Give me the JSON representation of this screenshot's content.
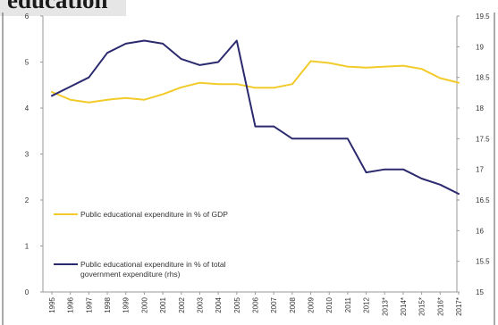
{
  "title": "education",
  "chart_data": {
    "type": "line",
    "x": [
      "1995",
      "1996",
      "1997",
      "1998",
      "1999",
      "2000",
      "2001",
      "2002",
      "2003",
      "2004",
      "2005",
      "2006",
      "2007",
      "2008",
      "2009",
      "2010",
      "2011",
      "2012",
      "2013*",
      "2014*",
      "2015*",
      "2016*",
      "2017*"
    ],
    "series": [
      {
        "name": "Public educational expenditure in % of GDP",
        "axis": "left",
        "color": "#f2cb2a",
        "values": [
          4.35,
          4.18,
          4.12,
          4.18,
          4.22,
          4.18,
          4.3,
          4.45,
          4.55,
          4.52,
          4.52,
          4.44,
          4.44,
          4.52,
          5.02,
          4.98,
          4.9,
          4.88,
          4.9,
          4.92,
          4.85,
          4.65,
          4.55
        ]
      },
      {
        "name": "Public educational expenditure in % of total government expenditure (rhs)",
        "legend_lines": [
          "Public educational expenditure in % of total",
          "government expenditure (rhs)"
        ],
        "axis": "right",
        "color": "#2b2a6e",
        "values": [
          18.2,
          18.35,
          18.5,
          18.9,
          19.05,
          19.1,
          19.05,
          18.8,
          18.7,
          18.75,
          19.1,
          17.7,
          17.7,
          17.5,
          17.5,
          17.5,
          17.5,
          16.95,
          17.0,
          17.0,
          16.85,
          16.75,
          16.6
        ]
      }
    ],
    "y_left": {
      "ticks": [
        "0",
        "1",
        "2",
        "3",
        "4",
        "5",
        "6"
      ],
      "range": [
        0,
        6
      ]
    },
    "y_right": {
      "ticks": [
        "15",
        "15.5",
        "16",
        "16.5",
        "17",
        "17.5",
        "18",
        "18.5",
        "19",
        "19.5"
      ],
      "range": [
        15,
        19.5
      ]
    },
    "grid": false,
    "legend": "inside-left"
  }
}
